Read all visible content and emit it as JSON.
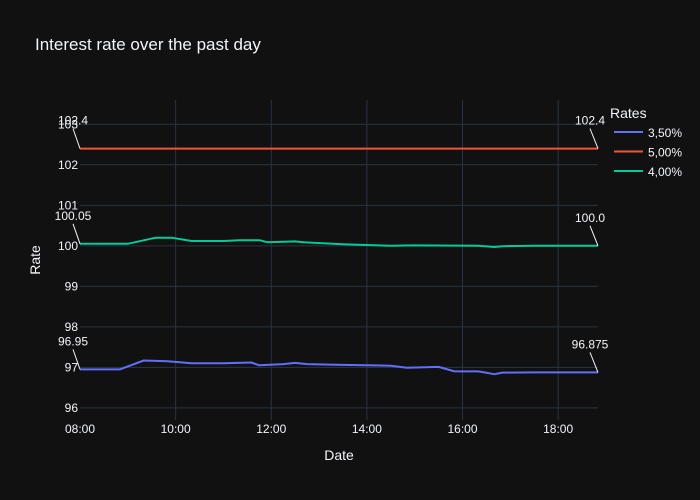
{
  "chart_data": {
    "type": "line",
    "title": "Interest rate over the past day",
    "xlabel": "Date",
    "ylabel": "Rate",
    "legend_title": "Rates",
    "legend_position": "top-right",
    "grid": true,
    "xlim": [
      "08:00",
      "18:50"
    ],
    "ylim": [
      95.7,
      103.6
    ],
    "x_ticks": [
      "08:00",
      "10:00",
      "12:00",
      "14:00",
      "16:00",
      "18:00"
    ],
    "y_ticks": [
      96,
      97,
      98,
      99,
      100,
      101,
      102,
      103
    ],
    "colors": {
      "background": "#111111",
      "grid": "#283442",
      "text": "#f2f5fa"
    },
    "series": [
      {
        "name": "3,50%",
        "color": "#636efa",
        "x": [
          "08:00",
          "08:50",
          "09:20",
          "09:50",
          "10:20",
          "11:00",
          "11:35",
          "11:45",
          "12:15",
          "12:30",
          "12:45",
          "13:30",
          "14:30",
          "14:50",
          "15:30",
          "15:50",
          "16:20",
          "16:40",
          "16:50",
          "17:30",
          "18:50"
        ],
        "values": [
          96.95,
          96.95,
          97.17,
          97.15,
          97.1,
          97.1,
          97.12,
          97.05,
          97.08,
          97.11,
          97.08,
          97.06,
          97.04,
          96.99,
          97.01,
          96.9,
          96.9,
          96.83,
          96.87,
          96.875,
          96.875
        ]
      },
      {
        "name": "5,00%",
        "color": "#ef553b",
        "x": [
          "08:00",
          "18:50"
        ],
        "values": [
          102.4,
          102.4
        ]
      },
      {
        "name": "4,00%",
        "color": "#00cc96",
        "x": [
          "08:00",
          "09:00",
          "09:35",
          "09:55",
          "10:20",
          "11:00",
          "11:20",
          "11:45",
          "11:55",
          "12:30",
          "12:40",
          "13:30",
          "14:30",
          "15:00",
          "16:20",
          "16:40",
          "16:50",
          "17:30",
          "18:50"
        ],
        "values": [
          100.05,
          100.05,
          100.2,
          100.2,
          100.12,
          100.12,
          100.14,
          100.14,
          100.09,
          100.11,
          100.09,
          100.04,
          100.0,
          100.01,
          100.0,
          99.97,
          99.99,
          100.0,
          100.0
        ]
      }
    ],
    "annotations": [
      {
        "series": 0,
        "text": "96.95",
        "x": "08:00",
        "y": 96.95,
        "side": "start"
      },
      {
        "series": 0,
        "text": "96.875",
        "x": "18:50",
        "y": 96.875,
        "side": "end"
      },
      {
        "series": 1,
        "text": "102.4",
        "x": "08:00",
        "y": 102.4,
        "side": "start"
      },
      {
        "series": 1,
        "text": "102.4",
        "x": "18:50",
        "y": 102.4,
        "side": "end"
      },
      {
        "series": 2,
        "text": "100.05",
        "x": "08:00",
        "y": 100.05,
        "side": "start"
      },
      {
        "series": 2,
        "text": "100.0",
        "x": "18:50",
        "y": 100.0,
        "side": "end"
      }
    ]
  }
}
